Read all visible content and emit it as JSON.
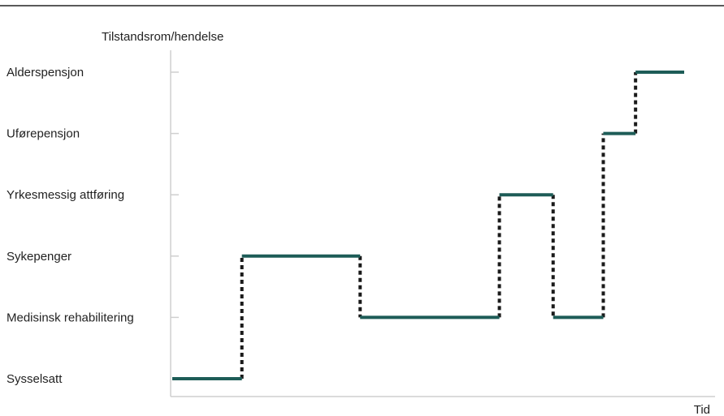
{
  "chart_data": {
    "type": "line",
    "subtype": "step",
    "ylabel": "Tilstandsrom/hendelse",
    "xlabel": "Tid",
    "states": [
      "Sysselsatt",
      "Medisinsk rehabilitering",
      "Sykepenger",
      "Yrkesmessig attføring",
      "Uførepensjon",
      "Alderspensjon"
    ],
    "xlim": [
      0,
      100
    ],
    "segments": [
      {
        "state": "Sysselsatt",
        "x_start": 0,
        "x_end": 13.6
      },
      {
        "state": "Sykepenger",
        "x_start": 13.6,
        "x_end": 36.7
      },
      {
        "state": "Medisinsk rehabilitering",
        "x_start": 36.7,
        "x_end": 63.9
      },
      {
        "state": "Yrkesmessig attføring",
        "x_start": 63.9,
        "x_end": 74.4
      },
      {
        "state": "Medisinsk rehabilitering",
        "x_start": 74.4,
        "x_end": 84.2
      },
      {
        "state": "Uførepensjon",
        "x_start": 84.2,
        "x_end": 90.5
      },
      {
        "state": "Alderspensjon",
        "x_start": 90.5,
        "x_end": 100
      }
    ],
    "grid": false,
    "legend": "none",
    "colors": {
      "segment": "#1d5c57",
      "transition": "#1a1a1a",
      "axis": "#cfcfcf",
      "top_rule": "#222222"
    }
  }
}
